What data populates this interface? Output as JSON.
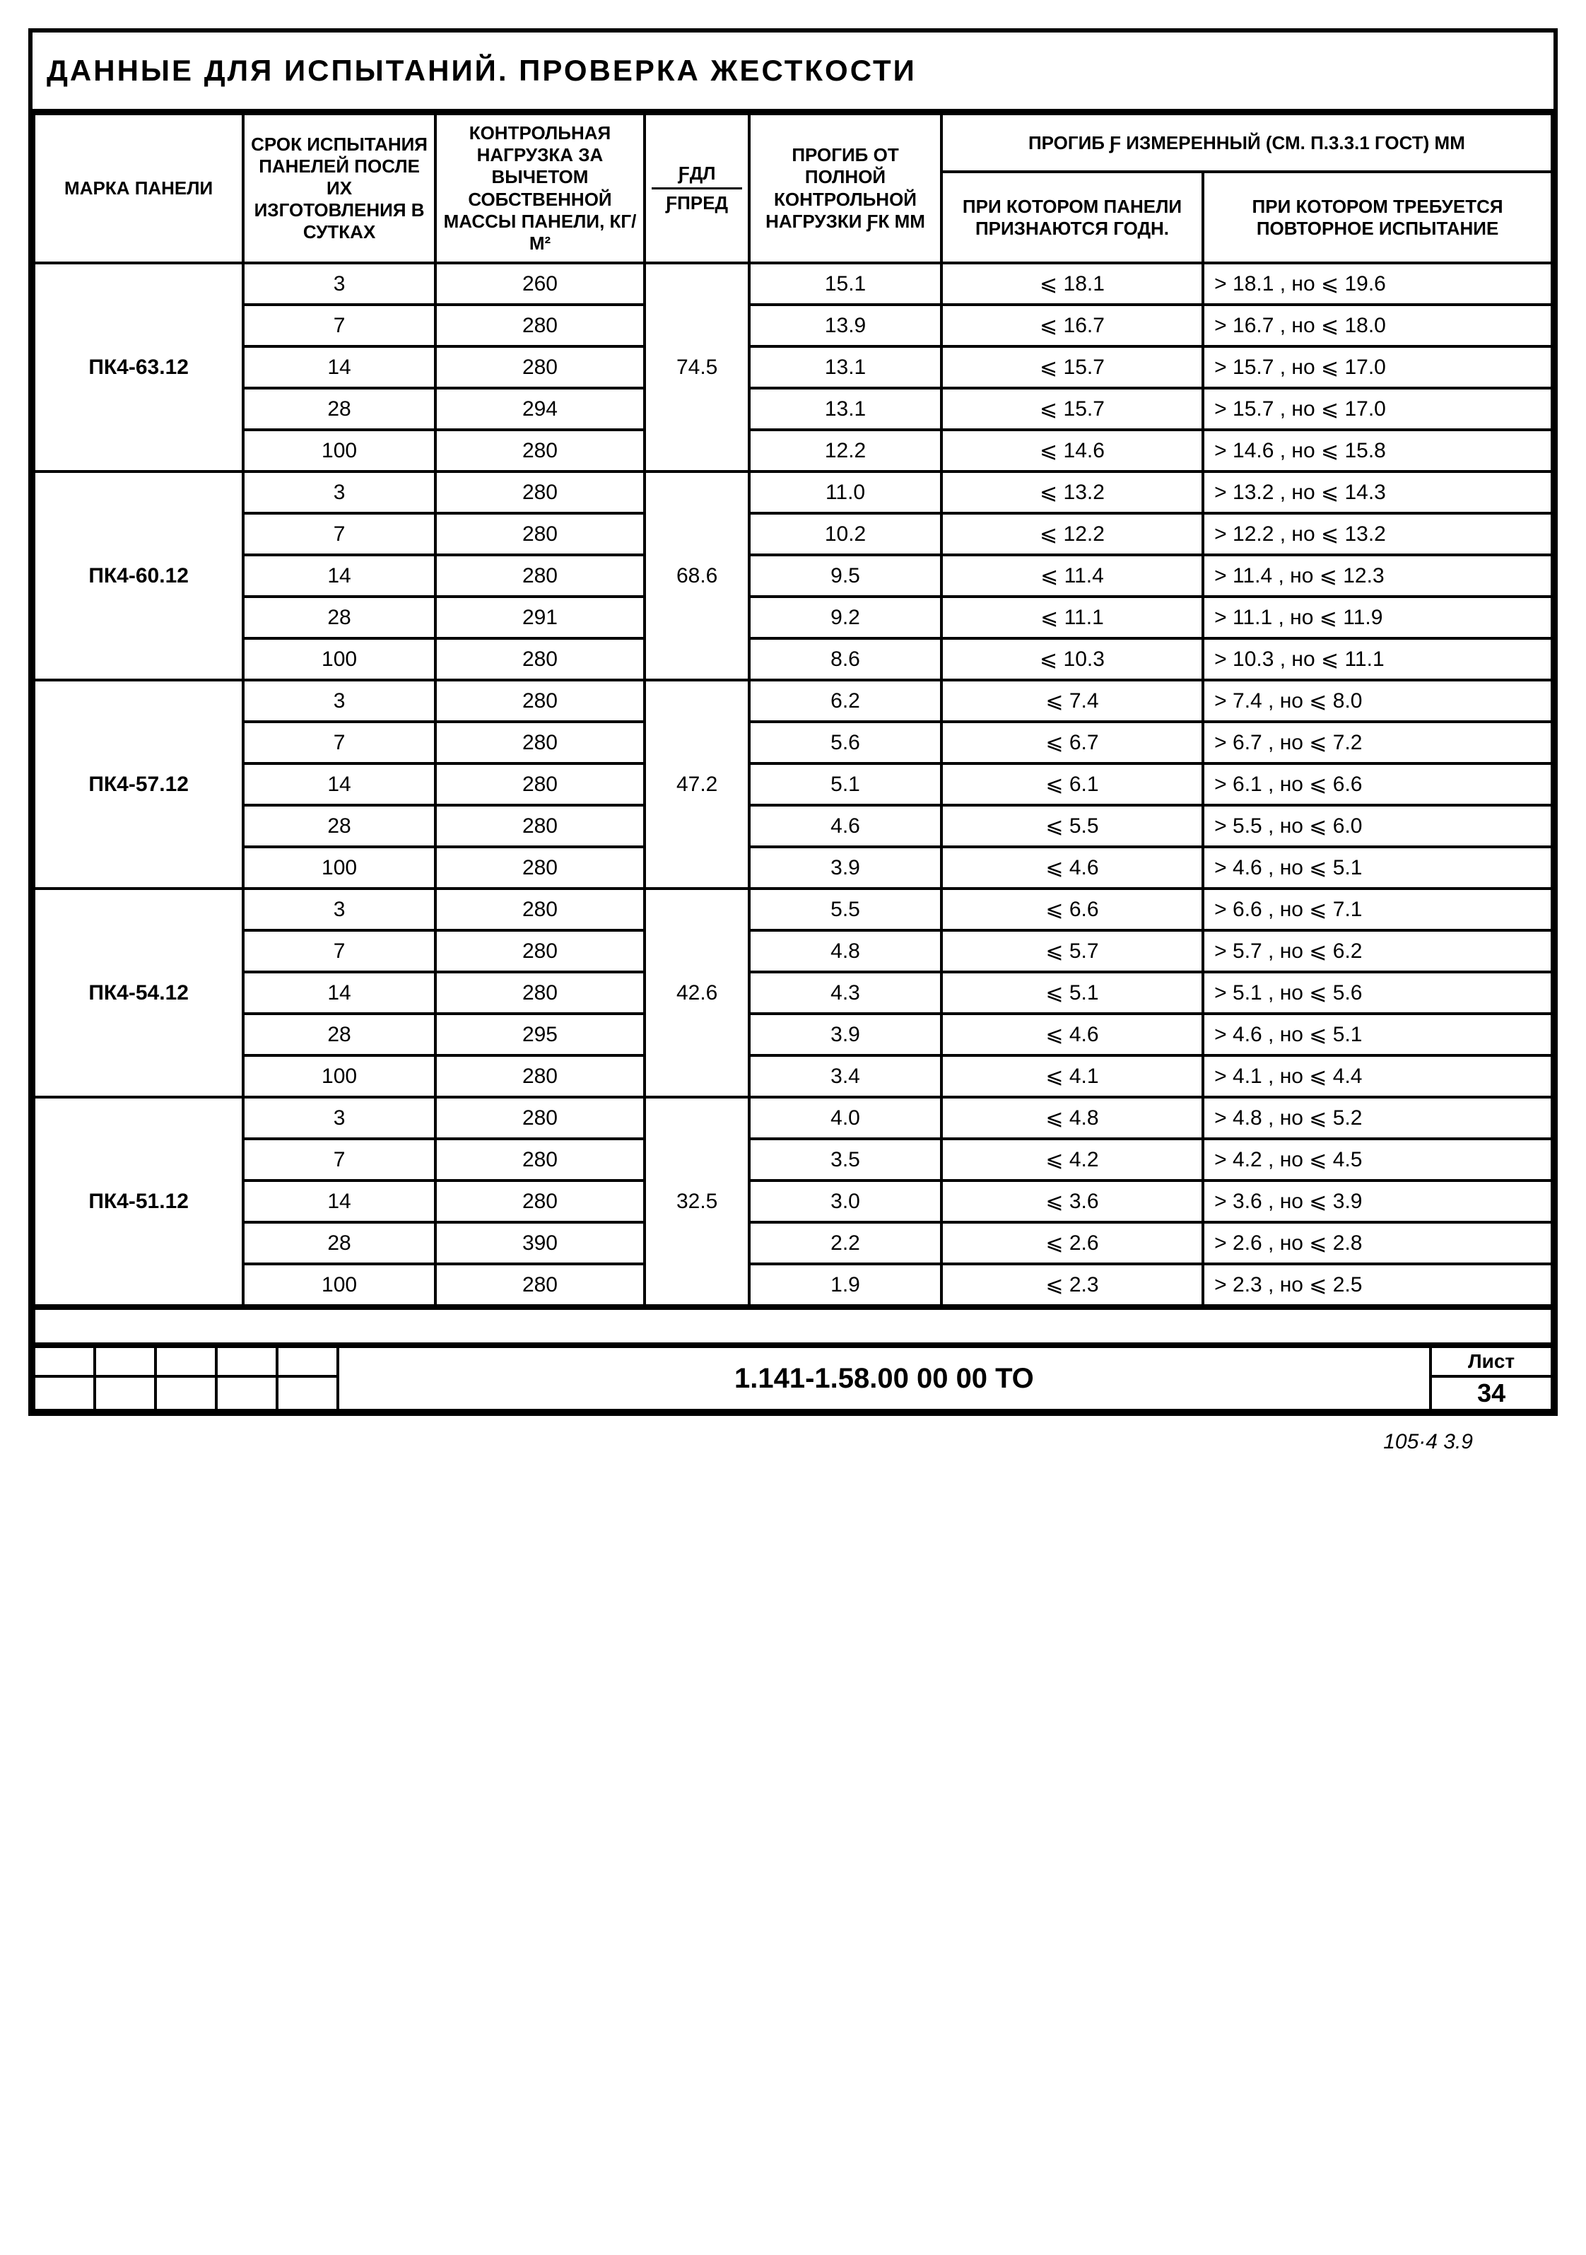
{
  "title": "Данные для испытаний. Проверка жесткости",
  "headers": {
    "mark": "Марка панели",
    "term": "Срок испытания панелей после их изготовления в сутках",
    "load": "Контрольная нагрузка за вычетом собственной массы панели, кг/м²",
    "fal_top": "ƒдл",
    "fal_bot": "ƒпред",
    "fk": "Прогиб от полной контрольной нагрузки ƒк мм",
    "deflection": "Прогиб ƒ измеренный (см. п.3.3.1 ГОСТ) мм",
    "godny": "при котором панели признаются годн.",
    "repeat": "при котором требуется повторное испытание"
  },
  "groups": [
    {
      "mark": "ПК4-63.12",
      "fal": "74.5",
      "rows": [
        {
          "term": "3",
          "load": "260",
          "fk": "15.1",
          "god": "⩽ 18.1",
          "rep": "> 18.1 , но ⩽ 19.6"
        },
        {
          "term": "7",
          "load": "280",
          "fk": "13.9",
          "god": "⩽ 16.7",
          "rep": "> 16.7 , но ⩽ 18.0"
        },
        {
          "term": "14",
          "load": "280",
          "fk": "13.1",
          "god": "⩽ 15.7",
          "rep": "> 15.7 , но ⩽ 17.0"
        },
        {
          "term": "28",
          "load": "294",
          "fk": "13.1",
          "god": "⩽ 15.7",
          "rep": "> 15.7 , но ⩽ 17.0"
        },
        {
          "term": "100",
          "load": "280",
          "fk": "12.2",
          "god": "⩽ 14.6",
          "rep": "> 14.6 , но ⩽ 15.8"
        }
      ]
    },
    {
      "mark": "ПК4-60.12",
      "fal": "68.6",
      "rows": [
        {
          "term": "3",
          "load": "280",
          "fk": "11.0",
          "god": "⩽ 13.2",
          "rep": "> 13.2 , но ⩽ 14.3"
        },
        {
          "term": "7",
          "load": "280",
          "fk": "10.2",
          "god": "⩽ 12.2",
          "rep": "> 12.2 , но ⩽ 13.2"
        },
        {
          "term": "14",
          "load": "280",
          "fk": "9.5",
          "god": "⩽ 11.4",
          "rep": "> 11.4 , но ⩽ 12.3"
        },
        {
          "term": "28",
          "load": "291",
          "fk": "9.2",
          "god": "⩽ 11.1",
          "rep": "> 11.1 , но ⩽ 11.9"
        },
        {
          "term": "100",
          "load": "280",
          "fk": "8.6",
          "god": "⩽ 10.3",
          "rep": "> 10.3 , но ⩽ 11.1"
        }
      ]
    },
    {
      "mark": "ПК4-57.12",
      "fal": "47.2",
      "rows": [
        {
          "term": "3",
          "load": "280",
          "fk": "6.2",
          "god": "⩽ 7.4",
          "rep": "> 7.4 , но ⩽ 8.0"
        },
        {
          "term": "7",
          "load": "280",
          "fk": "5.6",
          "god": "⩽ 6.7",
          "rep": "> 6.7 , но ⩽ 7.2"
        },
        {
          "term": "14",
          "load": "280",
          "fk": "5.1",
          "god": "⩽ 6.1",
          "rep": "> 6.1 , но ⩽ 6.6"
        },
        {
          "term": "28",
          "load": "280",
          "fk": "4.6",
          "god": "⩽ 5.5",
          "rep": "> 5.5 , но ⩽ 6.0"
        },
        {
          "term": "100",
          "load": "280",
          "fk": "3.9",
          "god": "⩽ 4.6",
          "rep": "> 4.6 , но ⩽ 5.1"
        }
      ]
    },
    {
      "mark": "ПК4-54.12",
      "fal": "42.6",
      "rows": [
        {
          "term": "3",
          "load": "280",
          "fk": "5.5",
          "god": "⩽ 6.6",
          "rep": "> 6.6 , но ⩽ 7.1"
        },
        {
          "term": "7",
          "load": "280",
          "fk": "4.8",
          "god": "⩽ 5.7",
          "rep": "> 5.7 , но ⩽ 6.2"
        },
        {
          "term": "14",
          "load": "280",
          "fk": "4.3",
          "god": "⩽ 5.1",
          "rep": "> 5.1 , но ⩽ 5.6"
        },
        {
          "term": "28",
          "load": "295",
          "fk": "3.9",
          "god": "⩽ 4.6",
          "rep": "> 4.6 , но ⩽ 5.1"
        },
        {
          "term": "100",
          "load": "280",
          "fk": "3.4",
          "god": "⩽ 4.1",
          "rep": "> 4.1 , но ⩽ 4.4"
        }
      ]
    },
    {
      "mark": "ПК4-51.12",
      "fal": "32.5",
      "rows": [
        {
          "term": "3",
          "load": "280",
          "fk": "4.0",
          "god": "⩽ 4.8",
          "rep": "> 4.8 , но ⩽ 5.2"
        },
        {
          "term": "7",
          "load": "280",
          "fk": "3.5",
          "god": "⩽ 4.2",
          "rep": "> 4.2 , но ⩽ 4.5"
        },
        {
          "term": "14",
          "load": "280",
          "fk": "3.0",
          "god": "⩽ 3.6",
          "rep": "> 3.6 , но ⩽ 3.9"
        },
        {
          "term": "28",
          "load": "390",
          "fk": "2.2",
          "god": "⩽ 2.6",
          "rep": "> 2.6 , но ⩽ 2.8"
        },
        {
          "term": "100",
          "load": "280",
          "fk": "1.9",
          "god": "⩽ 2.3",
          "rep": "> 2.3 , но ⩽ 2.5"
        }
      ]
    }
  ],
  "titleblock": {
    "document": "1.141-1.58.00 00 00  ТО",
    "sheet_label": "Лист",
    "sheet_no": "34"
  },
  "footnote": "105·4   3.9",
  "style": {
    "border_color": "#000000",
    "background": "#ffffff",
    "title_fontsize": 42,
    "header_fontsize": 26,
    "cell_fontsize": 30
  }
}
